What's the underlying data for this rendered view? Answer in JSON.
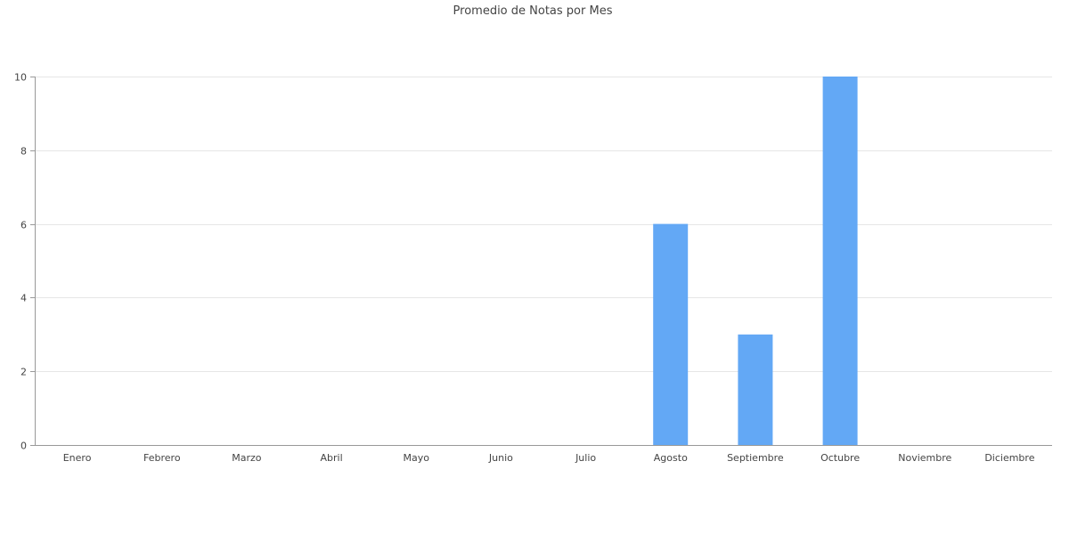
{
  "chart_data": {
    "type": "bar",
    "title": "Promedio de Notas por Mes",
    "xlabel": "",
    "ylabel": "",
    "categories": [
      "Enero",
      "Febrero",
      "Marzo",
      "Abril",
      "Mayo",
      "Junio",
      "Julio",
      "Agosto",
      "Septiembre",
      "Octubre",
      "Noviembre",
      "Diciembre"
    ],
    "values": [
      0,
      0,
      0,
      0,
      0,
      0,
      0,
      6,
      3,
      10,
      0,
      0
    ],
    "ylim": [
      0,
      10
    ],
    "yticks": [
      0,
      2,
      4,
      6,
      8,
      10
    ],
    "grid": true,
    "legend": "none",
    "bar_color": "#63a8f5"
  }
}
